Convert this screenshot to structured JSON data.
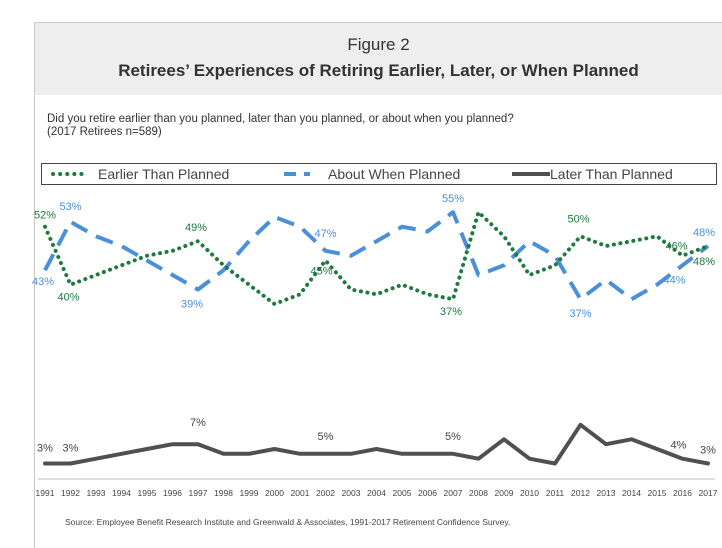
{
  "header": {
    "figure_label": "Figure 2",
    "title": "Retirees’ Experiences of Retiring Earlier, Later, or When Planned"
  },
  "question": {
    "line1": "Did you retire earlier than you planned, later than you planned, or about when you planned?",
    "line2": "(2017 Retirees n=589)"
  },
  "legend": {
    "items": [
      {
        "label": "Earlier Than Planned",
        "color": "#1e7a3e",
        "style": "dotted"
      },
      {
        "label": "About When Planned",
        "color": "#4a90d9",
        "style": "dashed"
      },
      {
        "label": "Later Than Planned",
        "color": "#505050",
        "style": "solid"
      }
    ]
  },
  "source": "Source:  Employee Benefit Research Institute and Greenwald & Associates, 1991-2017 Retirement Confidence Survey.",
  "chart_data": {
    "type": "line",
    "x": [
      "1991",
      "1992",
      "1993",
      "1994",
      "1995",
      "1996",
      "1997",
      "1998",
      "1999",
      "2000",
      "2001",
      "2002",
      "2003",
      "2004",
      "2005",
      "2006",
      "2007",
      "2008",
      "2009",
      "2010",
      "2011",
      "2012",
      "2013",
      "2014",
      "2015",
      "2016",
      "2017"
    ],
    "ylim": [
      0,
      60
    ],
    "series": [
      {
        "name": "Earlier Than Planned",
        "color": "#1e7a3e",
        "style": "dotted",
        "values": [
          52,
          40,
          42,
          44,
          46,
          47,
          49,
          44,
          40,
          36,
          38,
          45,
          39,
          38,
          40,
          38,
          37,
          55,
          50,
          42,
          44,
          50,
          48,
          49,
          50,
          46,
          48
        ]
      },
      {
        "name": "About When Planned",
        "color": "#4a90d9",
        "style": "dashed",
        "values": [
          43,
          53,
          50,
          48,
          45,
          42,
          39,
          43,
          49,
          54,
          52,
          47,
          46,
          49,
          52,
          51,
          55,
          42,
          44,
          49,
          46,
          37,
          41,
          37,
          40,
          44,
          48
        ]
      },
      {
        "name": "Later Than Planned",
        "color": "#505050",
        "style": "solid",
        "values": [
          3,
          3,
          4,
          5,
          6,
          7,
          7,
          5,
          5,
          6,
          5,
          5,
          5,
          6,
          5,
          5,
          5,
          4,
          8,
          4,
          3,
          11,
          7,
          8,
          6,
          4,
          3
        ]
      }
    ],
    "data_labels": [
      {
        "series": 0,
        "index": 0,
        "text": "52%"
      },
      {
        "series": 0,
        "index": 1,
        "text": "40%"
      },
      {
        "series": 0,
        "index": 6,
        "text": "49%"
      },
      {
        "series": 0,
        "index": 11,
        "text": "45%"
      },
      {
        "series": 0,
        "index": 16,
        "text": "37%"
      },
      {
        "series": 0,
        "index": 21,
        "text": "50%"
      },
      {
        "series": 0,
        "index": 25,
        "text": "46%"
      },
      {
        "series": 0,
        "index": 26,
        "text": "48%"
      },
      {
        "series": 1,
        "index": 0,
        "text": "43%"
      },
      {
        "series": 1,
        "index": 1,
        "text": "53%"
      },
      {
        "series": 1,
        "index": 6,
        "text": "39%"
      },
      {
        "series": 1,
        "index": 11,
        "text": "47%"
      },
      {
        "series": 1,
        "index": 16,
        "text": "55%"
      },
      {
        "series": 1,
        "index": 21,
        "text": "37%"
      },
      {
        "series": 1,
        "index": 25,
        "text": "44%"
      },
      {
        "series": 1,
        "index": 26,
        "text": "48%"
      },
      {
        "series": 2,
        "index": 0,
        "text": "3%"
      },
      {
        "series": 2,
        "index": 1,
        "text": "3%"
      },
      {
        "series": 2,
        "index": 6,
        "text": "7%"
      },
      {
        "series": 2,
        "index": 11,
        "text": "5%"
      },
      {
        "series": 2,
        "index": 16,
        "text": "5%"
      },
      {
        "series": 2,
        "index": 25,
        "text": "4%"
      },
      {
        "series": 2,
        "index": 26,
        "text": "3%"
      }
    ],
    "grid": false
  }
}
